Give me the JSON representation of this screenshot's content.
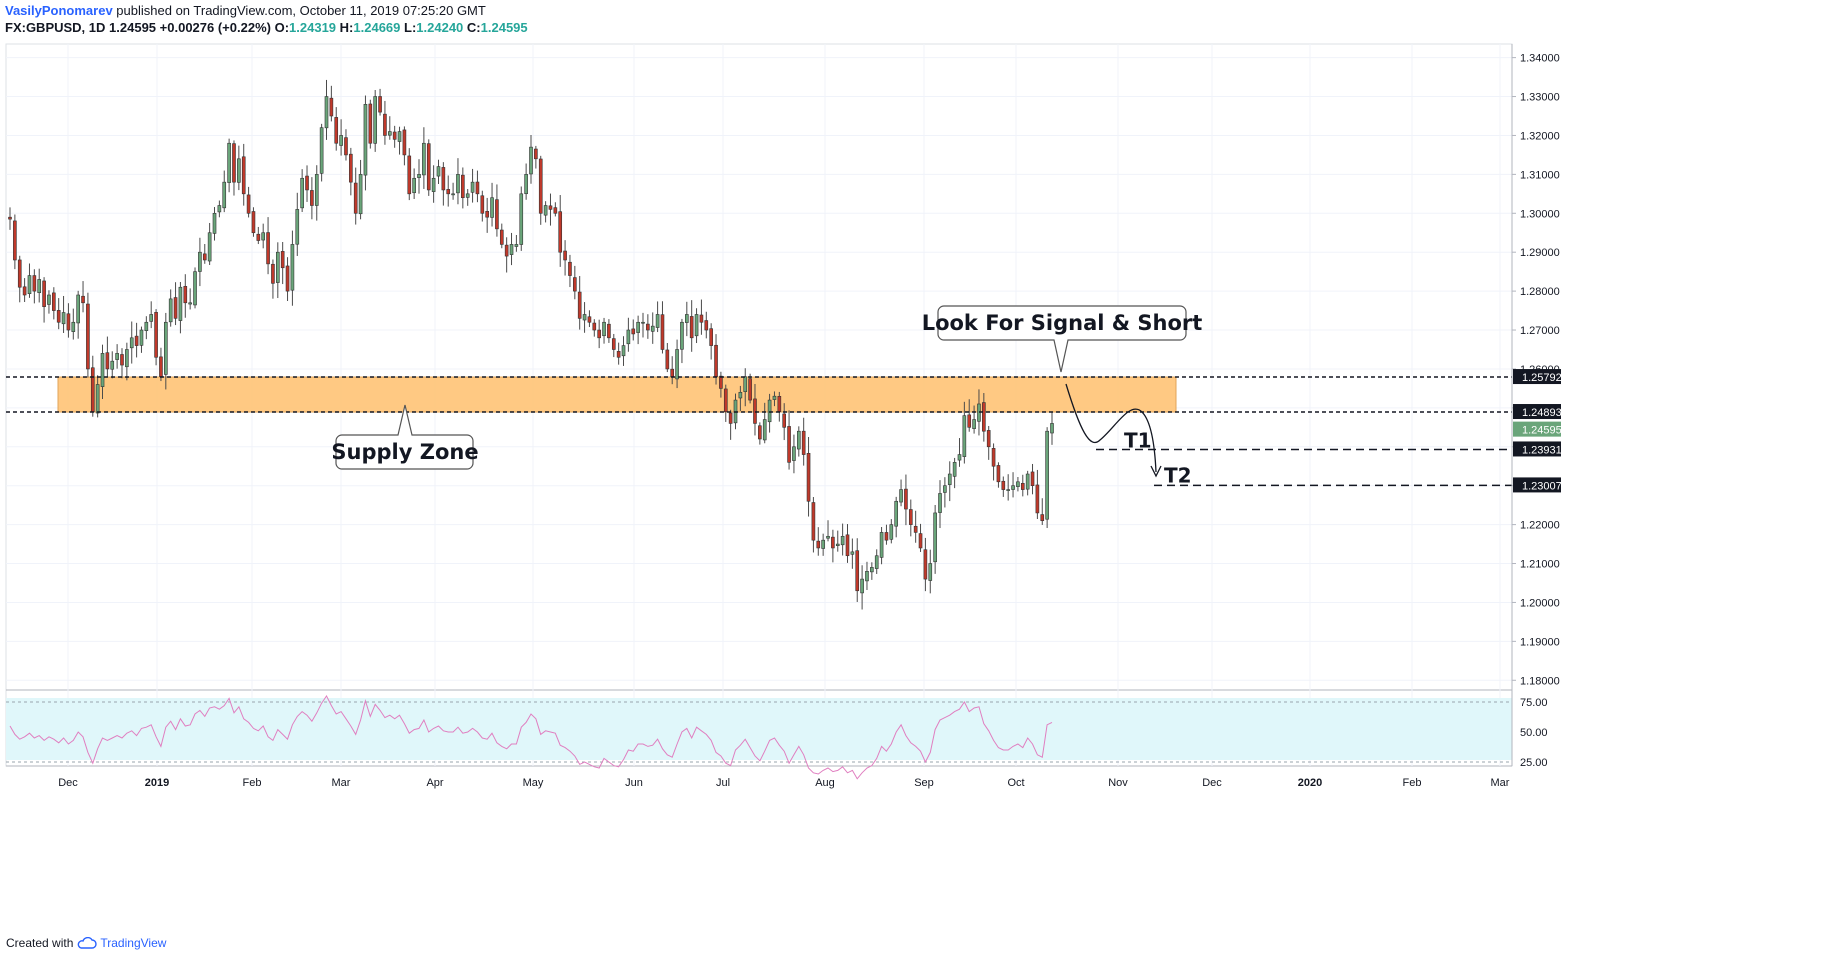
{
  "header": {
    "author": "VasilyPonomarev",
    "published": "published on TradingView.com, October 11, 2019 07:25:20 GMT",
    "symbol": "FX:GBPUSD, 1D",
    "last": "1.24595",
    "change": "+0.00276 (+0.22%)",
    "o_label": "O:",
    "o": "1.24319",
    "h_label": "H:",
    "h": "1.24669",
    "l_label": "L:",
    "l": "1.24240",
    "c_label": "C:",
    "c": "1.24595"
  },
  "footer": {
    "created_with": "Created with",
    "brand": "TradingView"
  },
  "colors": {
    "up": "#26a69a",
    "up_body": "#6aa57a",
    "down": "#c0392b",
    "zone": "#ffc77d",
    "rsi_bg": "#e0f7fa",
    "rsi_line": "#e07fc0"
  },
  "chart_data": {
    "type": "candlestick",
    "symbol": "FX:GBPUSD",
    "timeframe": "1D",
    "x_ticks": [
      "Dec",
      "2019",
      "Feb",
      "Mar",
      "Apr",
      "May",
      "Jun",
      "Jul",
      "Aug",
      "Sep",
      "Oct",
      "Nov",
      "Dec",
      "2020",
      "Feb",
      "Mar"
    ],
    "y_ticks": [
      "1.34000",
      "1.33000",
      "1.32000",
      "1.31000",
      "1.30000",
      "1.29000",
      "1.28000",
      "1.27000",
      "1.26000",
      "1.25000",
      "1.24000",
      "1.23000",
      "1.22000",
      "1.21000",
      "1.20000",
      "1.19000",
      "1.18000"
    ],
    "ylim": [
      1.1775,
      1.3435
    ],
    "closes": [
      1.2985,
      1.288,
      1.281,
      1.279,
      1.284,
      1.28,
      1.283,
      1.276,
      1.279,
      1.275,
      1.272,
      1.2745,
      1.27,
      1.272,
      1.279,
      1.277,
      1.26,
      1.249,
      1.256,
      1.264,
      1.26,
      1.262,
      1.264,
      1.261,
      1.265,
      1.268,
      1.266,
      1.27,
      1.272,
      1.274,
      1.263,
      1.258,
      1.272,
      1.278,
      1.273,
      1.281,
      1.277,
      1.277,
      1.285,
      1.29,
      1.288,
      1.295,
      1.3,
      1.302,
      1.308,
      1.318,
      1.308,
      1.314,
      1.305,
      1.3,
      1.295,
      1.293,
      1.295,
      1.287,
      1.282,
      1.29,
      1.286,
      1.28,
      1.292,
      1.301,
      1.309,
      1.306,
      1.302,
      1.31,
      1.322,
      1.33,
      1.325,
      1.318,
      1.32,
      1.315,
      1.308,
      1.3,
      1.31,
      1.328,
      1.318,
      1.33,
      1.326,
      1.32,
      1.321,
      1.319,
      1.321,
      1.315,
      1.305,
      1.309,
      1.31,
      1.318,
      1.306,
      1.309,
      1.312,
      1.306,
      1.305,
      1.305,
      1.31,
      1.304,
      1.305,
      1.308,
      1.305,
      1.3,
      1.299,
      1.304,
      1.296,
      1.292,
      1.289,
      1.292,
      1.292,
      1.305,
      1.31,
      1.317,
      1.314,
      1.3,
      1.302,
      1.301,
      1.3,
      1.29,
      1.288,
      1.284,
      1.28,
      1.273,
      1.274,
      1.272,
      1.27,
      1.268,
      1.272,
      1.268,
      1.265,
      1.263,
      1.266,
      1.27,
      1.269,
      1.272,
      1.272,
      1.27,
      1.271,
      1.274,
      1.265,
      1.26,
      1.258,
      1.265,
      1.272,
      1.274,
      1.268,
      1.274,
      1.272,
      1.27,
      1.266,
      1.258,
      1.255,
      1.249,
      1.246,
      1.252,
      1.254,
      1.258,
      1.252,
      1.246,
      1.242,
      1.247,
      1.252,
      1.253,
      1.249,
      1.245,
      1.236,
      1.24,
      1.244,
      1.238,
      1.226,
      1.216,
      1.214,
      1.216,
      1.217,
      1.214,
      1.215,
      1.217,
      1.212,
      1.213,
      1.203,
      1.206,
      1.208,
      1.209,
      1.212,
      1.218,
      1.216,
      1.22,
      1.226,
      1.229,
      1.224,
      1.22,
      1.218,
      1.214,
      1.206,
      1.21,
      1.223,
      1.228,
      1.23,
      1.233,
      1.236,
      1.238,
      1.248,
      1.245,
      1.247,
      1.251,
      1.244,
      1.24,
      1.235,
      1.231,
      1.229,
      1.229,
      1.23,
      1.231,
      1.229,
      1.233,
      1.23,
      1.223,
      1.221,
      1.244,
      1.246
    ],
    "rsi": [
      55,
      48,
      44,
      46,
      49,
      45,
      47,
      43,
      46,
      44,
      41,
      45,
      40,
      43,
      50,
      46,
      33,
      24,
      36,
      45,
      43,
      45,
      47,
      45,
      49,
      51,
      47,
      53,
      54,
      56,
      46,
      38,
      54,
      59,
      52,
      61,
      55,
      56,
      65,
      68,
      63,
      70,
      71,
      69,
      72,
      78,
      66,
      71,
      61,
      58,
      53,
      51,
      55,
      46,
      43,
      52,
      48,
      44,
      56,
      63,
      67,
      64,
      59,
      66,
      74,
      80,
      72,
      65,
      67,
      61,
      55,
      48,
      60,
      76,
      63,
      73,
      68,
      62,
      64,
      61,
      64,
      57,
      49,
      52,
      53,
      60,
      50,
      53,
      55,
      51,
      50,
      50,
      54,
      49,
      50,
      53,
      50,
      45,
      44,
      49,
      41,
      38,
      36,
      40,
      40,
      54,
      58,
      65,
      61,
      48,
      51,
      50,
      49,
      39,
      37,
      34,
      30,
      23,
      25,
      23,
      21,
      20,
      28,
      25,
      22,
      21,
      27,
      35,
      34,
      40,
      40,
      38,
      39,
      44,
      36,
      31,
      29,
      40,
      50,
      53,
      45,
      54,
      51,
      48,
      43,
      33,
      30,
      24,
      22,
      35,
      39,
      44,
      37,
      30,
      26,
      34,
      43,
      45,
      39,
      34,
      24,
      31,
      38,
      31,
      20,
      16,
      15,
      18,
      20,
      17,
      18,
      21,
      16,
      18,
      11,
      16,
      20,
      22,
      28,
      38,
      34,
      40,
      50,
      56,
      47,
      41,
      38,
      34,
      25,
      33,
      52,
      60,
      62,
      64,
      67,
      69,
      75,
      67,
      70,
      71,
      57,
      51,
      43,
      37,
      35,
      35,
      38,
      40,
      37,
      45,
      40,
      31,
      29,
      56,
      58
    ],
    "rsi_ticks": [
      "75.00",
      "50.00",
      "25.00"
    ],
    "supply_zone": [
      1.24893,
      1.25792
    ],
    "price_labels": [
      "1.25792",
      "1.24893",
      "1.24595",
      "1.23931",
      "1.23007"
    ],
    "targets": [
      {
        "name": "T1",
        "price": 1.23931
      },
      {
        "name": "T2",
        "price": 1.23007
      }
    ],
    "annotations": [
      "Look For Signal & Short",
      "Supply Zone"
    ]
  }
}
